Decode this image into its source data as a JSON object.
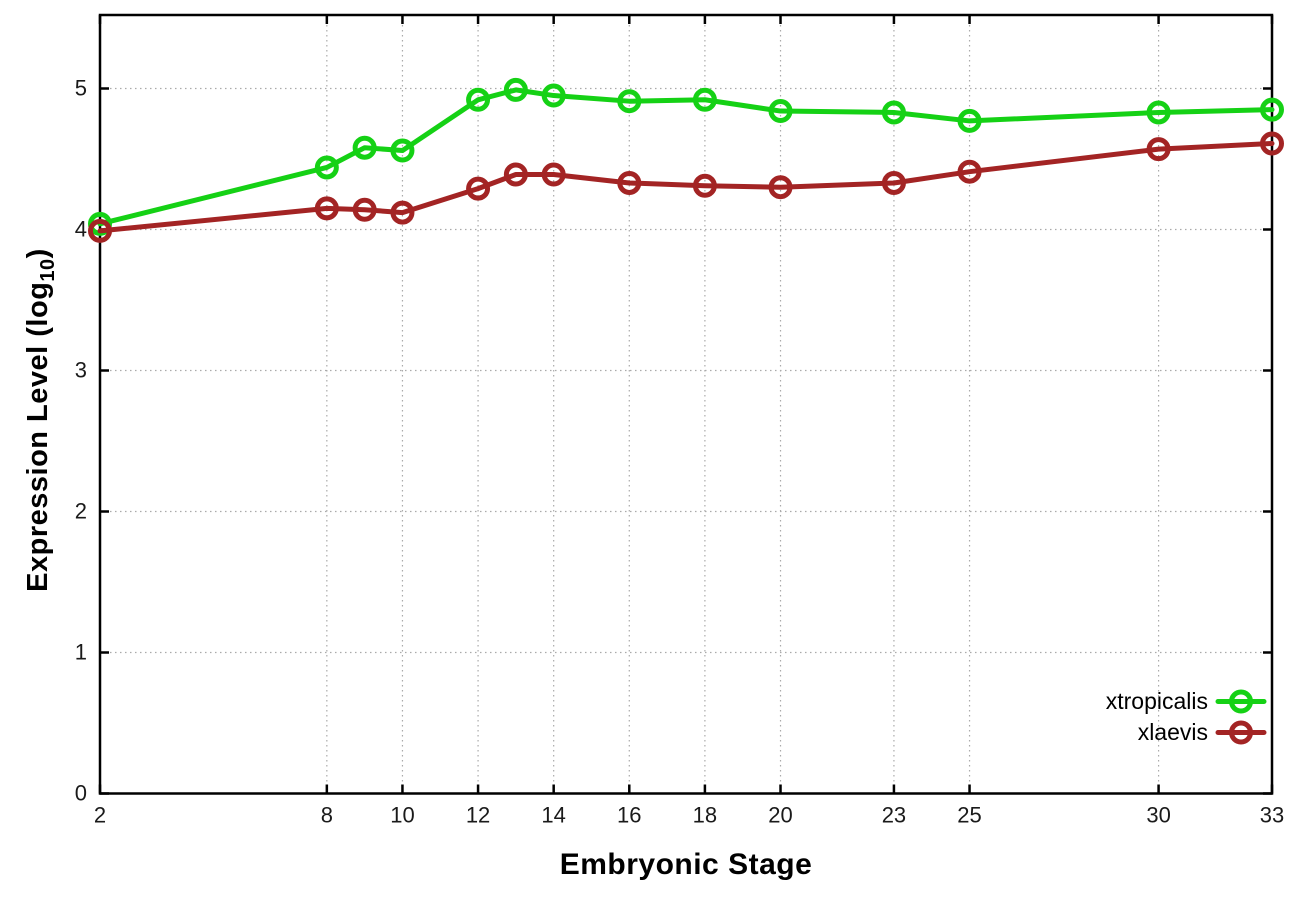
{
  "chart_data": {
    "type": "line",
    "title": "",
    "xlabel": "Embryonic Stage",
    "ylabel": "Expression Level (log10)",
    "ylabel_parts": {
      "prefix": "Expression Level (log",
      "sub": "10",
      "suffix": ")"
    },
    "x_tick_values": [
      2,
      8,
      10,
      12,
      14,
      16,
      18,
      20,
      23,
      25,
      30,
      33
    ],
    "x_tick_labels": [
      "2",
      "8",
      "10",
      "12",
      "14",
      "16",
      "18",
      "20",
      "23",
      "25",
      "30",
      "33"
    ],
    "y_tick_values": [
      0,
      1,
      2,
      3,
      4,
      5
    ],
    "y_tick_labels": [
      "0",
      "1",
      "2",
      "3",
      "4",
      "5"
    ],
    "xlim": [
      2,
      33
    ],
    "ylim": [
      0,
      5.52
    ],
    "grid": "dotted",
    "background_color": "#ffffff",
    "axis_color": "#000000",
    "grid_color": "#aaaaaa",
    "tick_label_color": "#1a1a1a",
    "legend": {
      "position": "inside-bottom-right"
    },
    "x": [
      2,
      8,
      9,
      10,
      12,
      13,
      14,
      16,
      18,
      20,
      23,
      25,
      30,
      33
    ],
    "series": [
      {
        "name": "xtropicalis",
        "color": "#15d115",
        "marker": "open-circle",
        "values": [
          4.04,
          4.44,
          4.58,
          4.56,
          4.92,
          4.99,
          4.95,
          4.91,
          4.92,
          4.84,
          4.83,
          4.77,
          4.83,
          4.85
        ]
      },
      {
        "name": "xlaevis",
        "color": "#a32424",
        "marker": "open-circle",
        "values": [
          3.99,
          4.15,
          4.14,
          4.12,
          4.29,
          4.39,
          4.39,
          4.33,
          4.31,
          4.3,
          4.33,
          4.41,
          4.57,
          4.61
        ]
      }
    ]
  }
}
